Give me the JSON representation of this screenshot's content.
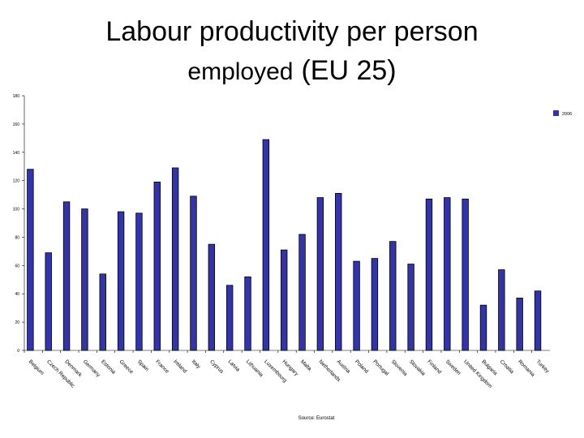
{
  "chart_data": {
    "type": "bar",
    "title": [
      "Labour productivity per person",
      "employed",
      "(EU 25)"
    ],
    "categories": [
      "Belgium",
      "Czech Republic",
      "Denmark",
      "Germany",
      "Estonia",
      "Greece",
      "Spain",
      "France",
      "Ireland",
      "Italy",
      "Cyprus",
      "Latvia",
      "Lithuania",
      "Luxembourg",
      "Hungary",
      "Malta",
      "Netherlands",
      "Austria",
      "Poland",
      "Portugal",
      "Slovenia",
      "Slovakia",
      "Finland",
      "Sweden",
      "United Kingdom",
      "Bulgaria",
      "Croatia",
      "Romania",
      "Turkey"
    ],
    "series": [
      {
        "name": "2006",
        "color": "#3333aa",
        "values": [
          128,
          69,
          105,
          100,
          54,
          98,
          97,
          119,
          129,
          109,
          75,
          46,
          52,
          149,
          71,
          82,
          108,
          111,
          63,
          65,
          77,
          61,
          107,
          108,
          107,
          32,
          57,
          37,
          42
        ]
      }
    ],
    "ylim": [
      0,
      180
    ],
    "yticks": [
      0,
      20,
      40,
      60,
      80,
      100,
      120,
      140,
      160,
      180
    ],
    "legend": "top-right",
    "source": "Source: Eurostat"
  }
}
